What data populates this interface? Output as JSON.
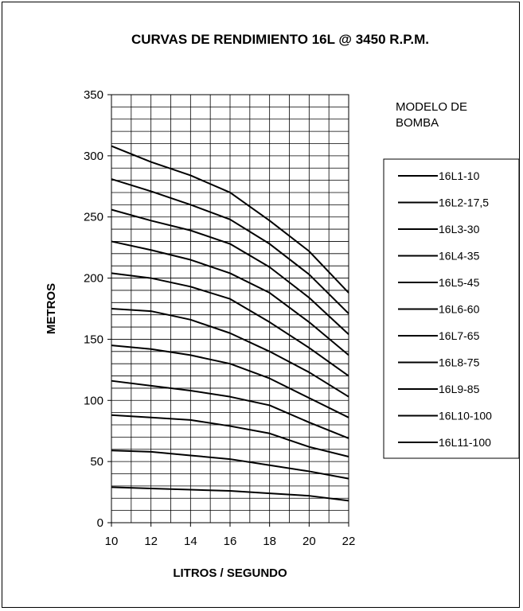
{
  "chart_data": {
    "type": "line",
    "title": "CURVAS DE RENDIMIENTO 16L @ 3450 R.P.M.",
    "xlabel": "LITROS / SEGUNDO",
    "ylabel": "METROS",
    "xlim": [
      10,
      22
    ],
    "ylim": [
      0,
      350
    ],
    "x_ticks": [
      10,
      12,
      14,
      16,
      18,
      20,
      22
    ],
    "y_ticks": [
      0,
      50,
      100,
      150,
      200,
      250,
      300,
      350
    ],
    "grid": true,
    "legend_heading": "MODELO DE BOMBA",
    "legend_placement": "right",
    "line_color": "#000000",
    "x": [
      10,
      12,
      14,
      16,
      18,
      20,
      22
    ],
    "series": [
      {
        "name": "16L1-10",
        "values": [
          29,
          28,
          27,
          26,
          24,
          22,
          18
        ]
      },
      {
        "name": "16L2-17,5",
        "values": [
          59,
          58,
          55,
          52,
          47,
          42,
          36
        ]
      },
      {
        "name": "16L3-30",
        "values": [
          88,
          86,
          84,
          79,
          73,
          62,
          54
        ]
      },
      {
        "name": "16L4-35",
        "values": [
          116,
          112,
          108,
          103,
          96,
          82,
          69
        ]
      },
      {
        "name": "16L5-45",
        "values": [
          145,
          142,
          137,
          130,
          118,
          102,
          86
        ]
      },
      {
        "name": "16L6-60",
        "values": [
          175,
          173,
          166,
          155,
          140,
          123,
          103
        ]
      },
      {
        "name": "16L7-65",
        "values": [
          204,
          200,
          193,
          183,
          164,
          143,
          120
        ]
      },
      {
        "name": "16L8-75",
        "values": [
          230,
          223,
          215,
          204,
          188,
          164,
          137
        ]
      },
      {
        "name": "16L9-85",
        "values": [
          256,
          247,
          239,
          228,
          209,
          184,
          154
        ]
      },
      {
        "name": "16L10-100",
        "values": [
          281,
          271,
          260,
          248,
          228,
          203,
          171
        ]
      },
      {
        "name": "16L11-100",
        "values": [
          308,
          295,
          284,
          270,
          247,
          222,
          188
        ]
      }
    ]
  }
}
